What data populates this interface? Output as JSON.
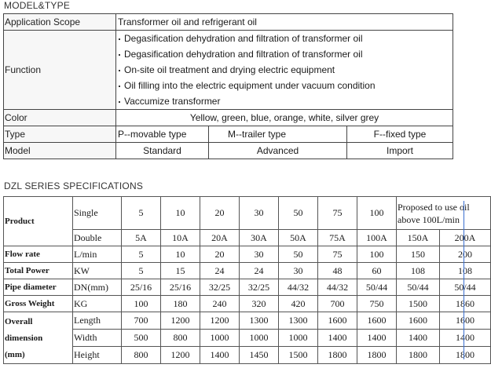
{
  "model_type": {
    "title": "MODEL&TYPE",
    "application_scope": {
      "label": "Application Scope",
      "value": "Transformer oil and refrigerant oil"
    },
    "function": {
      "label": "Function",
      "items": [
        "Degasification dehydration and filtration of transformer oil",
        "Degasification dehydration and filtration of transformer oil",
        "On-site oil treatment and drying electric equipment",
        "Oil filling into the electric equipment under vacuum condition",
        "Vaccumize transformer"
      ]
    },
    "color": {
      "label": "Color",
      "value": "Yellow, green, blue, orange, white, silver grey"
    },
    "type": {
      "label": "Type",
      "values": [
        "P--movable type",
        "M--trailer type",
        "F--fixed type"
      ]
    },
    "model": {
      "label": "Model",
      "values": [
        "Standard",
        "Advanced",
        "Import"
      ]
    }
  },
  "specs": {
    "title": "DZL SERIES SPECIFICATIONS",
    "product_label": "Product",
    "single_label": "Single",
    "double_label": "Double",
    "single_values": [
      "5",
      "10",
      "20",
      "30",
      "50",
      "75",
      "100"
    ],
    "proposed_lines": [
      "Proposed to use oil",
      "above 100L/min"
    ],
    "double_values": [
      "5A",
      "10A",
      "20A",
      "30A",
      "50A",
      "75A",
      "100A",
      "150A",
      "200A"
    ],
    "rows": [
      {
        "label": "Flow rate",
        "unit": "L/min",
        "values": [
          "5",
          "10",
          "20",
          "30",
          "50",
          "75",
          "100",
          "150",
          "200"
        ]
      },
      {
        "label": "Total Power",
        "unit": "KW",
        "values": [
          "5",
          "15",
          "24",
          "24",
          "30",
          "48",
          "60",
          "108",
          "108"
        ]
      },
      {
        "label": "Pipe diameter",
        "unit": "DN(mm)",
        "values": [
          "25/16",
          "25/16",
          "32/25",
          "32/25",
          "44/32",
          "44/32",
          "50/44",
          "50/44",
          "50/44"
        ]
      },
      {
        "label": "Gross Weight",
        "unit": "KG",
        "values": [
          "100",
          "180",
          "240",
          "320",
          "420",
          "700",
          "750",
          "1500",
          "1860"
        ]
      }
    ],
    "overall": {
      "label_lines": [
        "Overall",
        "dimension",
        "(mm)"
      ],
      "rows": [
        {
          "unit": "Length",
          "values": [
            "700",
            "1200",
            "1200",
            "1300",
            "1300",
            "1600",
            "1600",
            "1600",
            "1600"
          ]
        },
        {
          "unit": "Width",
          "values": [
            "500",
            "800",
            "1000",
            "1000",
            "1000",
            "1400",
            "1400",
            "1400",
            "1400"
          ]
        },
        {
          "unit": "Height",
          "values": [
            "800",
            "1200",
            "1400",
            "1450",
            "1500",
            "1800",
            "1800",
            "1800",
            "1800"
          ]
        }
      ]
    }
  }
}
